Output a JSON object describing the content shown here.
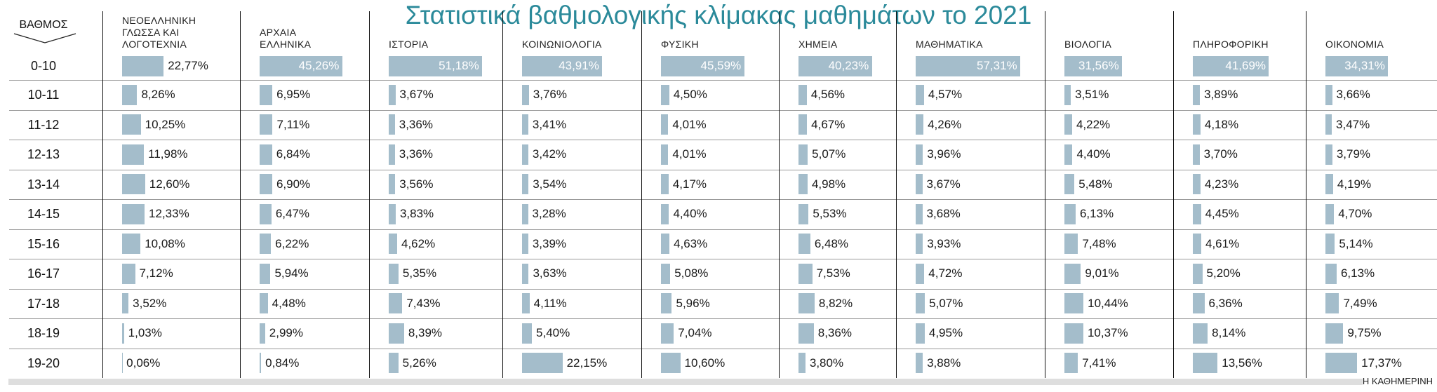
{
  "chart_data": {
    "type": "bar",
    "title": "Στατιστικά βαθμολογικής κλίμακας μαθημάτων το 2021",
    "x_label": "ΒΑΘΜΟΣ",
    "source": "Η ΚΑΘΗΜΕΡΙΝΗ",
    "color": "#a4bdcb",
    "categories": [
      "0-10",
      "10-11",
      "11-12",
      "12-13",
      "13-14",
      "14-15",
      "15-16",
      "16-17",
      "17-18",
      "18-19",
      "19-20"
    ],
    "series": [
      {
        "name": "ΝΕΟΕΛΛΗΝΙΚΗ ΓΛΩΣΣΑ ΚΑΙ ΛΟΓΟΤΕΧΝΙΑ",
        "values": [
          22.77,
          8.26,
          10.25,
          11.98,
          12.6,
          12.33,
          10.08,
          7.12,
          3.52,
          1.03,
          0.06
        ],
        "value_labels": [
          "22,77%",
          "8,26%",
          "10,25%",
          "11,98%",
          "12,60%",
          "12,33%",
          "10,08%",
          "7,12%",
          "3,52%",
          "1,03%",
          "0,06%"
        ]
      },
      {
        "name": "ΑΡΧΑΙΑ ΕΛΛΗΝΙΚΑ",
        "values": [
          45.26,
          6.95,
          7.11,
          6.84,
          6.9,
          6.47,
          6.22,
          5.94,
          4.48,
          2.99,
          0.84
        ],
        "value_labels": [
          "45,26%",
          "6,95%",
          "7,11%",
          "6,84%",
          "6,90%",
          "6,47%",
          "6,22%",
          "5,94%",
          "4,48%",
          "2,99%",
          "0,84%"
        ]
      },
      {
        "name": "ΙΣΤΟΡΙΑ",
        "values": [
          51.18,
          3.67,
          3.36,
          3.36,
          3.56,
          3.83,
          4.62,
          5.35,
          7.43,
          8.39,
          5.26
        ],
        "value_labels": [
          "51,18%",
          "3,67%",
          "3,36%",
          "3,36%",
          "3,56%",
          "3,83%",
          "4,62%",
          "5,35%",
          "7,43%",
          "8,39%",
          "5,26%"
        ]
      },
      {
        "name": "ΚΟΙΝΩΝΙΟΛΟΓΙΑ",
        "values": [
          43.91,
          3.76,
          3.41,
          3.42,
          3.54,
          3.28,
          3.39,
          3.63,
          4.11,
          5.4,
          22.15
        ],
        "value_labels": [
          "43,91%",
          "3,76%",
          "3,41%",
          "3,42%",
          "3,54%",
          "3,28%",
          "3,39%",
          "3,63%",
          "4,11%",
          "5,40%",
          "22,15%"
        ]
      },
      {
        "name": "ΦΥΣΙΚΗ",
        "values": [
          45.59,
          4.5,
          4.01,
          4.01,
          4.17,
          4.4,
          4.63,
          5.08,
          5.96,
          7.04,
          10.6
        ],
        "value_labels": [
          "45,59%",
          "4,50%",
          "4,01%",
          "4,01%",
          "4,17%",
          "4,40%",
          "4,63%",
          "5,08%",
          "5,96%",
          "7,04%",
          "10,60%"
        ]
      },
      {
        "name": "ΧΗΜΕΙΑ",
        "values": [
          40.23,
          4.56,
          4.67,
          5.07,
          4.98,
          5.53,
          6.48,
          7.53,
          8.82,
          8.36,
          3.8
        ],
        "value_labels": [
          "40,23%",
          "4,56%",
          "4,67%",
          "5,07%",
          "4,98%",
          "5,53%",
          "6,48%",
          "7,53%",
          "8,82%",
          "8,36%",
          "3,80%"
        ]
      },
      {
        "name": "ΜΑΘΗΜΑΤΙΚΑ",
        "values": [
          57.31,
          4.57,
          4.26,
          3.96,
          3.67,
          3.68,
          3.93,
          4.72,
          5.07,
          4.95,
          3.88
        ],
        "value_labels": [
          "57,31%",
          "4,57%",
          "4,26%",
          "3,96%",
          "3,67%",
          "3,68%",
          "3,93%",
          "4,72%",
          "5,07%",
          "4,95%",
          "3,88%"
        ]
      },
      {
        "name": "ΒΙΟΛΟΓΙΑ",
        "values": [
          31.56,
          3.51,
          4.22,
          4.4,
          5.48,
          6.13,
          7.48,
          9.01,
          10.44,
          10.37,
          7.41
        ],
        "value_labels": [
          "31,56%",
          "3,51%",
          "4,22%",
          "4,40%",
          "5,48%",
          "6,13%",
          "7,48%",
          "9,01%",
          "10,44%",
          "10,37%",
          "7,41%"
        ]
      },
      {
        "name": "ΠΛΗΡΟΦΟΡΙΚΗ",
        "values": [
          41.69,
          3.89,
          4.18,
          3.7,
          4.23,
          4.45,
          4.61,
          5.2,
          6.36,
          8.14,
          13.56
        ],
        "value_labels": [
          "41,69%",
          "3,89%",
          "4,18%",
          "3,70%",
          "4,23%",
          "4,45%",
          "4,61%",
          "5,20%",
          "6,36%",
          "8,14%",
          "13,56%"
        ]
      },
      {
        "name": "ΟΙΚΟΝΟΜΙΑ",
        "values": [
          34.31,
          3.66,
          3.47,
          3.79,
          4.19,
          4.7,
          5.14,
          6.13,
          7.49,
          9.75,
          17.37
        ],
        "value_labels": [
          "34,31%",
          "3,66%",
          "3,47%",
          "3,79%",
          "4,19%",
          "4,70%",
          "5,14%",
          "6,13%",
          "7,49%",
          "9,75%",
          "17,37%"
        ]
      }
    ]
  }
}
